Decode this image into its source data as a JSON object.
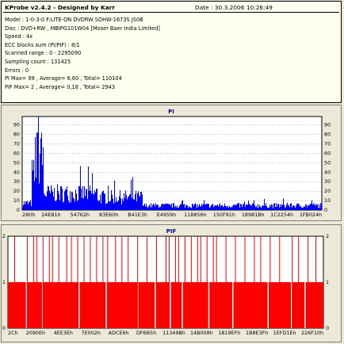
{
  "header": {
    "app_title": "KProbe v2.4.2 - Designed by Karr",
    "date": "Date : 30.3.2006 10:26:49"
  },
  "info_lines": [
    "Model : 1-0-3-0 F:LITE-ON DVDRW SOHW-1673S JS0B",
    "Disc : DVD+RW , MBIPG101W04 [Moser Baer India Limited]",
    "Speed : 4x",
    "ECC blocks sum (PI/PIF) : 8/1",
    "Scanned range : 0 - 2295090",
    "Sampling count : 131425",
    "Errors : 0",
    "PI Max= 99 , Average= 6,60 , Total= 110104",
    "PIF Max= 2 , Average= 0,18 , Total= 2943"
  ],
  "colors": {
    "pi_bars": "#0000ff",
    "pif_bars": "#ff0000",
    "title": "#00008b",
    "plot_bg": "#ffffff",
    "grid": "#808080"
  },
  "chart_data": [
    {
      "type": "bar",
      "title": "PI",
      "grid": true,
      "ylim": [
        0,
        99
      ],
      "y_ticks": [
        0,
        10,
        20,
        30,
        40,
        50,
        60,
        70,
        80,
        90
      ],
      "y_ticks_right": [
        0,
        10,
        20,
        30,
        40,
        50,
        60,
        70,
        80,
        90
      ],
      "x_tick_labels": [
        "280h",
        "24E81h",
        "54762h",
        "83E60h",
        "B41E3h",
        "E4959h",
        "118856h",
        "150F91h",
        "18981Bh",
        "1C2254h",
        "1FB024h"
      ],
      "max": 99,
      "average": 6.6,
      "total": 110104,
      "x_range": [
        "280h",
        "230B34h"
      ],
      "profile": [
        {
          "from": 0,
          "to": 0.03,
          "level": 9
        },
        {
          "from": 0.03,
          "to": 0.04,
          "level": 45
        },
        {
          "from": 0.04,
          "to": 0.07,
          "level": 70
        },
        {
          "from": 0.07,
          "to": 0.25,
          "level": 22
        },
        {
          "from": 0.25,
          "to": 0.4,
          "level": 17
        },
        {
          "from": 0.4,
          "to": 1.0,
          "level": 6
        }
      ],
      "peaks": [
        {
          "x": 0.053,
          "value": 99
        },
        {
          "x": 0.049,
          "value": 82
        },
        {
          "x": 0.06,
          "value": 76
        }
      ]
    },
    {
      "type": "bar",
      "title": "PIF",
      "grid": true,
      "ylim": [
        0,
        2
      ],
      "y_ticks": [
        0,
        1,
        2
      ],
      "y_ticks_right": [
        0,
        1,
        2
      ],
      "x_tick_labels": [
        "2Ch",
        "2090Eh",
        "4EE3Eh",
        "7E002h",
        "ADCE6h",
        "DF6B5h",
        "11349Bh",
        "14B008h",
        "1819EFh",
        "1B8E3Fh",
        "1EFD1Eh",
        "226F10h"
      ],
      "max": 2,
      "average": 0.18,
      "total": 2943,
      "baseline_value": 1,
      "spikes_at_max": [
        0.02,
        0.06,
        0.08,
        0.09,
        0.11,
        0.13,
        0.14,
        0.16,
        0.185,
        0.2,
        0.22,
        0.24,
        0.26,
        0.28,
        0.3,
        0.315,
        0.34,
        0.36,
        0.38,
        0.41,
        0.44,
        0.47,
        0.5,
        0.51,
        0.53,
        0.54,
        0.56,
        0.58,
        0.6,
        0.61,
        0.63,
        0.65,
        0.66,
        0.69,
        0.72,
        0.75,
        0.78,
        0.8,
        0.83,
        0.86,
        0.9,
        0.92,
        0.95,
        0.975
      ],
      "gaps_at_zero": [
        0.057,
        0.108,
        0.224,
        0.31,
        0.41,
        0.465,
        0.513,
        0.551,
        0.635,
        0.711,
        0.823,
        0.897,
        0.94
      ]
    }
  ]
}
